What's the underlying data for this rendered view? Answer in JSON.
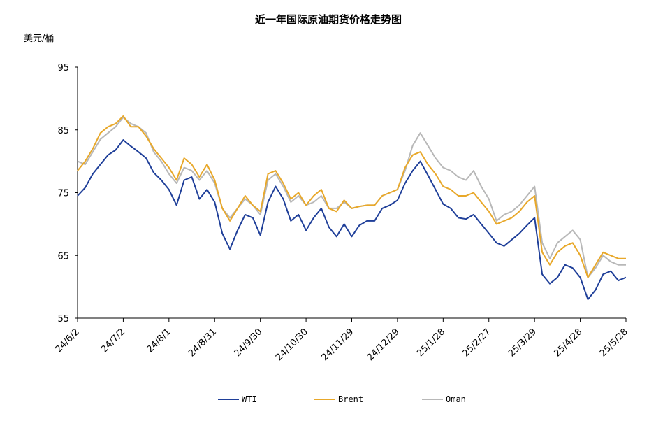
{
  "chart_data": {
    "type": "line",
    "title": "近一年国际原油期货价格走势图",
    "ylabel": "美元/桶",
    "xlabel": "",
    "ylim": [
      55,
      95
    ],
    "yticks": [
      55,
      65,
      75,
      85,
      95
    ],
    "grid": false,
    "legend_position": "bottom",
    "x_start": "2024-06-02",
    "x_end": "2025-05-28",
    "xtick_labels": [
      "24/6/2",
      "24/7/2",
      "24/8/1",
      "24/8/31",
      "24/9/30",
      "24/10/30",
      "24/11/29",
      "24/12/29",
      "25/1/28",
      "25/2/27",
      "25/3/29",
      "25/4/28",
      "25/5/28"
    ],
    "x_dates": [
      "2024-06-02",
      "2024-06-07",
      "2024-06-12",
      "2024-06-17",
      "2024-06-22",
      "2024-06-27",
      "2024-07-02",
      "2024-07-07",
      "2024-07-12",
      "2024-07-17",
      "2024-07-22",
      "2024-07-27",
      "2024-08-01",
      "2024-08-06",
      "2024-08-11",
      "2024-08-16",
      "2024-08-21",
      "2024-08-26",
      "2024-08-31",
      "2024-09-05",
      "2024-09-10",
      "2024-09-15",
      "2024-09-20",
      "2024-09-25",
      "2024-09-30",
      "2024-10-05",
      "2024-10-10",
      "2024-10-15",
      "2024-10-20",
      "2024-10-25",
      "2024-10-30",
      "2024-11-04",
      "2024-11-09",
      "2024-11-14",
      "2024-11-19",
      "2024-11-24",
      "2024-11-29",
      "2024-12-04",
      "2024-12-09",
      "2024-12-14",
      "2024-12-19",
      "2024-12-24",
      "2024-12-29",
      "2025-01-03",
      "2025-01-08",
      "2025-01-13",
      "2025-01-18",
      "2025-01-23",
      "2025-01-28",
      "2025-02-02",
      "2025-02-07",
      "2025-02-12",
      "2025-02-17",
      "2025-02-22",
      "2025-02-27",
      "2025-03-04",
      "2025-03-09",
      "2025-03-14",
      "2025-03-19",
      "2025-03-24",
      "2025-03-29",
      "2025-04-03",
      "2025-04-08",
      "2025-04-13",
      "2025-04-18",
      "2025-04-23",
      "2025-04-28",
      "2025-05-03",
      "2025-05-08",
      "2025-05-13",
      "2025-05-18",
      "2025-05-23",
      "2025-05-28"
    ],
    "series": [
      {
        "name": "WTI",
        "color": "#1f3f99",
        "values": [
          74.5,
          75.8,
          78.0,
          79.5,
          81.0,
          81.8,
          83.4,
          82.4,
          81.5,
          80.5,
          78.2,
          77.0,
          75.5,
          73.0,
          77.0,
          77.5,
          74.0,
          75.5,
          73.5,
          68.5,
          66.0,
          69.0,
          71.5,
          71.0,
          68.2,
          73.5,
          76.0,
          74.0,
          70.5,
          71.5,
          69.0,
          71.0,
          72.5,
          69.5,
          68.0,
          70.0,
          68.0,
          69.8,
          70.5,
          70.5,
          72.5,
          73.0,
          73.8,
          76.5,
          78.5,
          80.0,
          77.8,
          75.5,
          73.2,
          72.5,
          71.0,
          70.8,
          71.5,
          70.0,
          68.5,
          67.0,
          66.5,
          67.5,
          68.5,
          69.8,
          71.0,
          62.0,
          60.5,
          61.5,
          63.5,
          63.0,
          61.5,
          58.0,
          59.5,
          62.0,
          62.5,
          61.0,
          61.5
        ]
      },
      {
        "name": "Brent",
        "color": "#e8a82a",
        "values": [
          78.5,
          80.0,
          82.0,
          84.5,
          85.5,
          86.0,
          87.2,
          85.5,
          85.5,
          84.0,
          82.0,
          80.5,
          79.0,
          77.0,
          80.5,
          79.5,
          77.5,
          79.5,
          77.0,
          72.5,
          70.5,
          72.5,
          74.5,
          73.0,
          72.0,
          78.0,
          78.5,
          76.5,
          74.0,
          75.0,
          73.0,
          74.5,
          75.5,
          72.5,
          72.0,
          73.8,
          72.5,
          72.8,
          73.0,
          73.0,
          74.5,
          75.0,
          75.5,
          79.0,
          81.0,
          81.5,
          79.5,
          78.0,
          76.0,
          75.5,
          74.5,
          74.5,
          75.0,
          73.5,
          72.0,
          70.0,
          70.5,
          71.0,
          72.0,
          73.5,
          74.5,
          65.5,
          63.5,
          65.5,
          66.5,
          67.0,
          65.0,
          61.5,
          63.5,
          65.5,
          65.0,
          64.5,
          64.5
        ]
      },
      {
        "name": "Oman",
        "color": "#b8b8b8",
        "values": [
          80.0,
          79.5,
          81.5,
          83.5,
          84.5,
          85.5,
          87.0,
          86.0,
          85.5,
          84.5,
          81.5,
          80.0,
          78.0,
          76.5,
          79.0,
          78.5,
          77.0,
          78.5,
          76.5,
          72.5,
          71.0,
          72.5,
          74.0,
          73.0,
          71.5,
          77.0,
          78.0,
          76.0,
          73.5,
          74.5,
          73.0,
          73.5,
          74.5,
          72.5,
          72.5,
          73.5,
          72.5,
          72.8,
          73.0,
          73.0,
          74.5,
          75.0,
          75.5,
          78.5,
          82.5,
          84.5,
          82.5,
          80.5,
          79.0,
          78.5,
          77.5,
          77.0,
          78.5,
          76.0,
          74.0,
          70.5,
          71.5,
          72.0,
          73.0,
          74.5,
          76.0,
          67.0,
          64.5,
          67.0,
          68.0,
          69.0,
          67.5,
          61.5,
          63.0,
          65.0,
          64.0,
          63.5,
          63.5
        ]
      }
    ]
  }
}
